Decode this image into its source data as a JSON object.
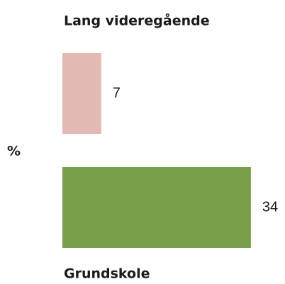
{
  "chart_data": {
    "type": "bar",
    "orientation": "horizontal",
    "categories": [
      "Lang videregående",
      "Grundskole"
    ],
    "values": [
      7,
      34
    ],
    "colors": [
      "#e3b9b4",
      "#78a04b"
    ],
    "axis_label": "%"
  }
}
